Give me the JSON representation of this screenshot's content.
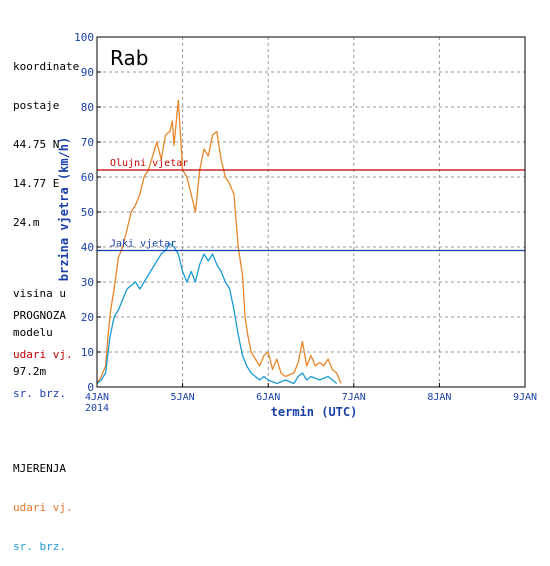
{
  "station": {
    "lines": [
      "koordinate",
      "postaje",
      "44.75 N",
      "14.77 E",
      "24.m",
      "visina u",
      "modelu",
      "97.2m"
    ]
  },
  "legend": {
    "prognoza_title": "PROGNOZA",
    "prognoza_gust": "udari vj.",
    "prognoza_mean": "sr. brz.",
    "mjerenja_title": "MJERENJA",
    "mjerenja_gust": "udari vj.",
    "mjerenja_mean": "sr. brz."
  },
  "colors": {
    "gust_measured": "#e8862a",
    "mean_measured": "#1b9bd6",
    "storm_line": "#c00000",
    "strong_line": "#1a3fa8",
    "grid": "#9a9a9a"
  },
  "chart_data": {
    "type": "line",
    "title": "Rab",
    "xlabel": "termin (UTC)",
    "ylabel": "brzina vjetra (km/h)",
    "ylim": [
      0,
      100
    ],
    "xlim_days": [
      4,
      9
    ],
    "x_ticks": [
      {
        "day": 4,
        "label": "4JAN",
        "sub": "2014"
      },
      {
        "day": 5,
        "label": "5JAN",
        "sub": ""
      },
      {
        "day": 6,
        "label": "6JAN",
        "sub": ""
      },
      {
        "day": 7,
        "label": "7JAN",
        "sub": ""
      },
      {
        "day": 8,
        "label": "8JAN",
        "sub": ""
      },
      {
        "day": 9,
        "label": "9JAN",
        "sub": ""
      }
    ],
    "y_ticks": [
      0,
      10,
      20,
      30,
      40,
      50,
      60,
      70,
      80,
      90,
      100
    ],
    "grid": true,
    "thresholds": [
      {
        "name": "Olujni vjetar",
        "value": 62
      },
      {
        "name": "Jaki vjetar",
        "value": 39
      }
    ],
    "series": [
      {
        "name": "MJERENJA udari vj.",
        "color": "#e8862a",
        "points": [
          [
            4.0,
            1
          ],
          [
            4.05,
            3
          ],
          [
            4.1,
            6
          ],
          [
            4.13,
            15
          ],
          [
            4.16,
            22
          ],
          [
            4.2,
            28
          ],
          [
            4.25,
            37
          ],
          [
            4.3,
            40
          ],
          [
            4.35,
            45
          ],
          [
            4.4,
            50
          ],
          [
            4.45,
            52
          ],
          [
            4.5,
            55
          ],
          [
            4.55,
            60
          ],
          [
            4.6,
            62
          ],
          [
            4.65,
            66
          ],
          [
            4.7,
            70
          ],
          [
            4.75,
            65
          ],
          [
            4.8,
            72
          ],
          [
            4.85,
            73
          ],
          [
            4.88,
            76
          ],
          [
            4.9,
            69
          ],
          [
            4.95,
            82
          ],
          [
            5.0,
            62
          ],
          [
            5.05,
            60
          ],
          [
            5.1,
            55
          ],
          [
            5.15,
            50
          ],
          [
            5.2,
            62
          ],
          [
            5.25,
            68
          ],
          [
            5.3,
            66
          ],
          [
            5.35,
            72
          ],
          [
            5.4,
            73
          ],
          [
            5.45,
            65
          ],
          [
            5.5,
            60
          ],
          [
            5.55,
            58
          ],
          [
            5.6,
            55
          ],
          [
            5.65,
            40
          ],
          [
            5.7,
            32
          ],
          [
            5.73,
            20
          ],
          [
            5.76,
            15
          ],
          [
            5.8,
            10
          ],
          [
            5.85,
            8
          ],
          [
            5.9,
            6
          ],
          [
            5.95,
            9
          ],
          [
            6.0,
            10
          ],
          [
            6.05,
            5
          ],
          [
            6.1,
            8
          ],
          [
            6.15,
            4
          ],
          [
            6.2,
            3
          ],
          [
            6.3,
            4
          ],
          [
            6.35,
            7
          ],
          [
            6.4,
            13
          ],
          [
            6.45,
            6
          ],
          [
            6.5,
            9
          ],
          [
            6.55,
            6
          ],
          [
            6.6,
            7
          ],
          [
            6.65,
            6
          ],
          [
            6.7,
            8
          ],
          [
            6.75,
            5
          ],
          [
            6.8,
            4
          ],
          [
            6.85,
            1
          ]
        ]
      },
      {
        "name": "MJERENJA sr. brz.",
        "color": "#1b9bd6",
        "points": [
          [
            4.0,
            1
          ],
          [
            4.05,
            2
          ],
          [
            4.1,
            4
          ],
          [
            4.15,
            14
          ],
          [
            4.2,
            20
          ],
          [
            4.25,
            22
          ],
          [
            4.3,
            25
          ],
          [
            4.35,
            28
          ],
          [
            4.4,
            29
          ],
          [
            4.45,
            30
          ],
          [
            4.5,
            28
          ],
          [
            4.55,
            30
          ],
          [
            4.6,
            32
          ],
          [
            4.65,
            34
          ],
          [
            4.7,
            36
          ],
          [
            4.75,
            38
          ],
          [
            4.8,
            39
          ],
          [
            4.85,
            41
          ],
          [
            4.9,
            40
          ],
          [
            4.95,
            38
          ],
          [
            5.0,
            33
          ],
          [
            5.05,
            30
          ],
          [
            5.1,
            33
          ],
          [
            5.15,
            30
          ],
          [
            5.2,
            35
          ],
          [
            5.25,
            38
          ],
          [
            5.3,
            36
          ],
          [
            5.35,
            38
          ],
          [
            5.4,
            35
          ],
          [
            5.45,
            33
          ],
          [
            5.5,
            30
          ],
          [
            5.55,
            28
          ],
          [
            5.6,
            22
          ],
          [
            5.65,
            15
          ],
          [
            5.7,
            9
          ],
          [
            5.75,
            6
          ],
          [
            5.8,
            4
          ],
          [
            5.85,
            3
          ],
          [
            5.9,
            2
          ],
          [
            5.95,
            3
          ],
          [
            6.0,
            2
          ],
          [
            6.1,
            1
          ],
          [
            6.2,
            2
          ],
          [
            6.3,
            1
          ],
          [
            6.35,
            3
          ],
          [
            6.4,
            4
          ],
          [
            6.45,
            2
          ],
          [
            6.5,
            3
          ],
          [
            6.6,
            2
          ],
          [
            6.7,
            3
          ],
          [
            6.8,
            1
          ]
        ]
      }
    ]
  }
}
